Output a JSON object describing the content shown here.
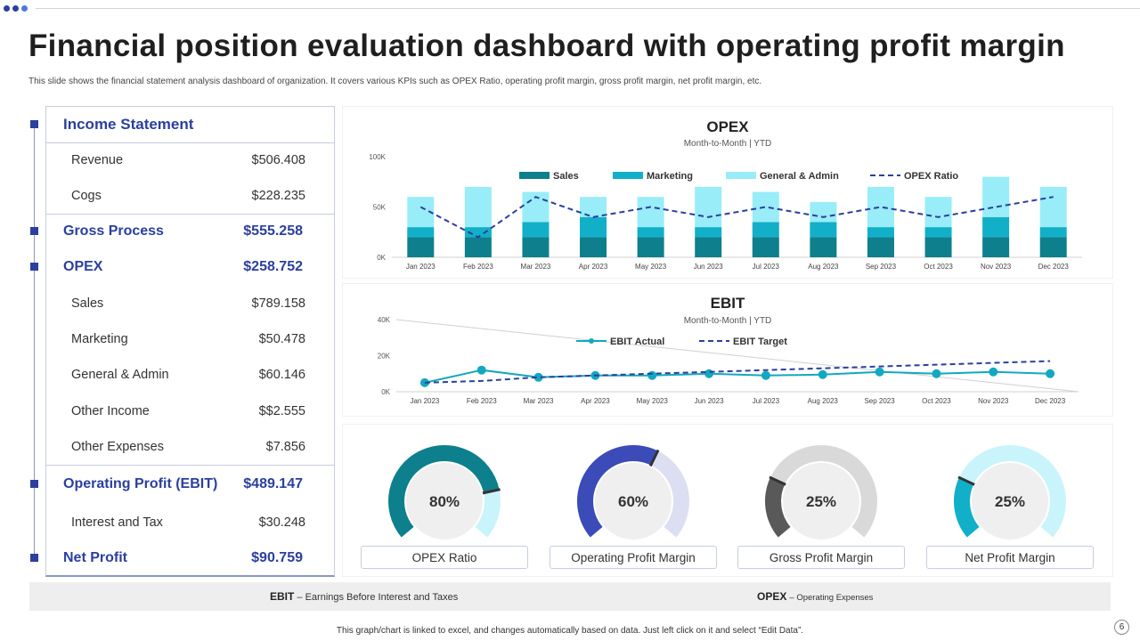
{
  "title": "Financial position evaluation dashboard with operating profit margin",
  "subtitle": "This slide shows the financial statement analysis dashboard of organization. It covers various KPIs such as OPEX Ratio, operating profit margin, gross profit margin, net profit margin, etc.",
  "table": {
    "rows": [
      {
        "label": "Income Statement",
        "value": "",
        "type": "head"
      },
      {
        "label": "Revenue",
        "value": "$506.408",
        "type": "sub"
      },
      {
        "label": "Cogs",
        "value": "$228.235",
        "type": "sub"
      },
      {
        "label": "Gross Process",
        "value": "$555.258",
        "type": "head"
      },
      {
        "label": "OPEX",
        "value": "$258.752",
        "type": "head"
      },
      {
        "label": "Sales",
        "value": "$789.158",
        "type": "sub"
      },
      {
        "label": "Marketing",
        "value": "$50.478",
        "type": "sub"
      },
      {
        "label": "General & Admin",
        "value": "$60.146",
        "type": "sub"
      },
      {
        "label": "Other Income",
        "value": "$$2.555",
        "type": "sub"
      },
      {
        "label": "Other Expenses",
        "value": "$7.856",
        "type": "sub"
      },
      {
        "label": "Operating Profit (EBIT)",
        "value": "$489.147",
        "type": "head"
      },
      {
        "label": "Interest and Tax",
        "value": "$30.248",
        "type": "sub"
      },
      {
        "label": "Net Profit",
        "value": "$90.759",
        "type": "head"
      }
    ]
  },
  "chart_data": [
    {
      "type": "bar",
      "title": "OPEX",
      "subtitle": "Month-to-Month | YTD",
      "categories": [
        "Jan 2023",
        "Feb 2023",
        "Mar 2023",
        "Apr 2023",
        "May 2023",
        "Jun 2023",
        "Jul 2023",
        "Aug 2023",
        "Sep 2023",
        "Oct 2023",
        "Nov 2023",
        "Dec 2023"
      ],
      "stacked": true,
      "ylim": [
        0,
        100000
      ],
      "yticks": [
        "0K",
        "50K",
        "100K"
      ],
      "series": [
        {
          "name": "Sales",
          "kind": "bar",
          "color": "#0e7f8c",
          "values": [
            20000,
            20000,
            20000,
            20000,
            20000,
            20000,
            20000,
            20000,
            20000,
            20000,
            20000,
            20000
          ]
        },
        {
          "name": "Marketing",
          "kind": "bar",
          "color": "#12afc8",
          "values": [
            10000,
            10000,
            15000,
            20000,
            10000,
            10000,
            15000,
            15000,
            10000,
            10000,
            20000,
            10000
          ]
        },
        {
          "name": "General & Admin",
          "kind": "bar",
          "color": "#98edf8",
          "values": [
            30000,
            40000,
            30000,
            20000,
            30000,
            40000,
            30000,
            20000,
            40000,
            30000,
            40000,
            40000
          ]
        },
        {
          "name": "OPEX Ratio",
          "kind": "line",
          "style": "dashed",
          "color": "#2b3f9e",
          "values": [
            50000,
            20000,
            60000,
            40000,
            50000,
            40000,
            50000,
            40000,
            50000,
            40000,
            50000,
            60000
          ]
        }
      ],
      "legend": "top"
    },
    {
      "type": "line",
      "title": "EBIT",
      "subtitle": "Month-to-Month | YTD",
      "categories": [
        "Jan 2023",
        "Feb 2023",
        "Mar 2023",
        "Apr 2023",
        "May 2023",
        "Jun 2023",
        "Jul 2023",
        "Aug 2023",
        "Sep 2023",
        "Oct 2023",
        "Nov 2023",
        "Dec 2023"
      ],
      "ylim": [
        0,
        40000
      ],
      "yticks": [
        "0K",
        "20K",
        "40K"
      ],
      "series": [
        {
          "name": "EBIT Actual",
          "style": "solid",
          "markers": true,
          "color": "#12a8c0",
          "values": [
            5000,
            12000,
            8000,
            9000,
            9000,
            10000,
            9000,
            9500,
            11000,
            10000,
            11000,
            10000
          ]
        },
        {
          "name": "EBIT Target",
          "style": "dashed",
          "markers": false,
          "color": "#2b3f9e",
          "values": [
            5000,
            6000,
            8000,
            9000,
            10000,
            11000,
            12000,
            13000,
            14000,
            15000,
            16000,
            17000
          ]
        }
      ],
      "legend": "top"
    }
  ],
  "gauges": [
    {
      "label": "OPEX Ratio",
      "value": 80,
      "text": "80%",
      "color": "#0e7f8c",
      "rest": "#c9f4fb"
    },
    {
      "label": "Operating Profit Margin",
      "value": 60,
      "text": "60%",
      "color": "#3b4bb8",
      "rest": "#dcdff2"
    },
    {
      "label": "Gross Profit Margin",
      "value": 25,
      "text": "25%",
      "color": "#595959",
      "rest": "#d9d9d9"
    },
    {
      "label": "Net Profit Margin",
      "value": 25,
      "text": "25%",
      "color": "#12afc8",
      "rest": "#c9f4fb"
    }
  ],
  "footer": {
    "ebit_abbr": "EBIT",
    "ebit_desc": "– Earnings Before Interest and Taxes",
    "opex_abbr": "OPEX",
    "opex_desc": "– Operating Expenses"
  },
  "note": "This graph/chart is linked to excel, and changes automatically based on data. Just left click on it and select “Edit Data”.",
  "page_number": "6"
}
